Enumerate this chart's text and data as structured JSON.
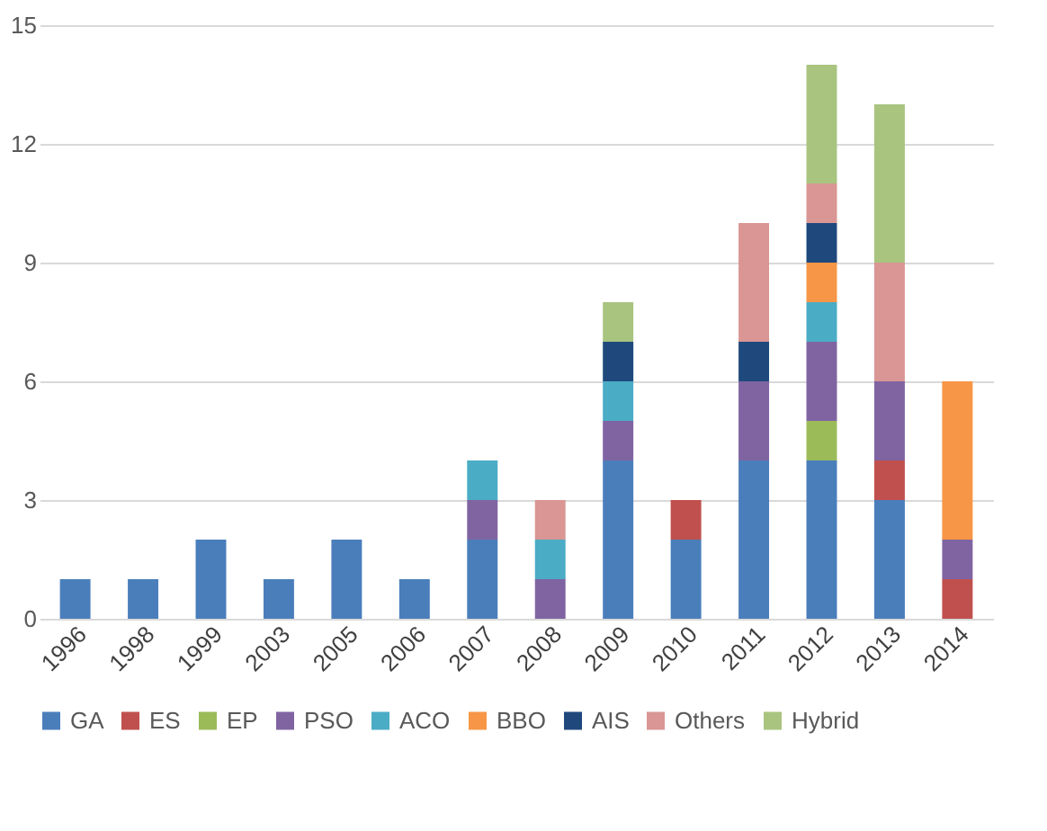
{
  "chart_data": {
    "type": "bar",
    "stacked": true,
    "categories": [
      "1996",
      "1998",
      "1999",
      "2003",
      "2005",
      "2006",
      "2007",
      "2008",
      "2009",
      "2010",
      "2011",
      "2012",
      "2013",
      "2014"
    ],
    "series": [
      {
        "name": "GA",
        "color": "#4a7ebb",
        "values": [
          1,
          1,
          2,
          1,
          2,
          1,
          2,
          null,
          4,
          2,
          4,
          4,
          3,
          null
        ]
      },
      {
        "name": "ES",
        "color": "#c0504d",
        "values": [
          null,
          null,
          null,
          null,
          null,
          null,
          null,
          null,
          null,
          1,
          null,
          null,
          1,
          1
        ]
      },
      {
        "name": "EP",
        "color": "#9bbb59",
        "values": [
          null,
          null,
          null,
          null,
          null,
          null,
          null,
          null,
          null,
          null,
          null,
          1,
          null,
          null
        ]
      },
      {
        "name": "PSO",
        "color": "#8064a2",
        "values": [
          null,
          null,
          null,
          null,
          null,
          null,
          1,
          1,
          1,
          null,
          2,
          2,
          2,
          1
        ]
      },
      {
        "name": "ACO",
        "color": "#4bacc6",
        "values": [
          null,
          null,
          null,
          null,
          null,
          null,
          1,
          1,
          1,
          null,
          null,
          1,
          null,
          null
        ]
      },
      {
        "name": "BBO",
        "color": "#f79646",
        "values": [
          null,
          null,
          null,
          null,
          null,
          null,
          null,
          null,
          null,
          null,
          null,
          1,
          null,
          4
        ]
      },
      {
        "name": "AIS",
        "color": "#1f497d",
        "values": [
          null,
          null,
          null,
          null,
          null,
          null,
          null,
          null,
          1,
          null,
          1,
          1,
          null,
          null
        ]
      },
      {
        "name": "Others",
        "color": "#d99694",
        "values": [
          null,
          null,
          null,
          null,
          null,
          null,
          null,
          1,
          null,
          null,
          3,
          1,
          3,
          null
        ]
      },
      {
        "name": "Hybrid",
        "color": "#a9c47f",
        "values": [
          null,
          null,
          null,
          null,
          null,
          null,
          null,
          null,
          1,
          null,
          null,
          3,
          4,
          null
        ]
      }
    ],
    "ylim": [
      0,
      15
    ],
    "yticks": [
      0,
      3,
      6,
      9,
      12,
      15
    ],
    "grid": "y",
    "legend": "bottom",
    "marker": "square"
  }
}
